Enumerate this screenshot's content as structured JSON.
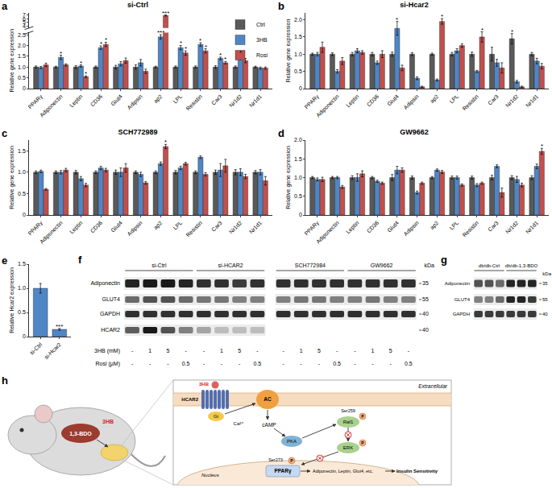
{
  "chart_data": [
    {
      "panel": "a",
      "type": "bar",
      "title": "si-Ctrl",
      "y_label": "Relative gene expression",
      "categories": [
        "PPARγ",
        "Adiponectin",
        "Leptin",
        "CD36",
        "Glut4",
        "Adipsin",
        "ap2",
        "LPL",
        "Resistin",
        "Car3",
        "Nr1d2",
        "Nr1d1"
      ],
      "series": [
        {
          "name": "Ctrl",
          "color": "#595959",
          "values": [
            1,
            1,
            1,
            1,
            1,
            1,
            1,
            1,
            1,
            1,
            1,
            1
          ],
          "errors": [
            0.05,
            0.04,
            0.06,
            0.05,
            0.08,
            0.1,
            0.04,
            0.05,
            0.05,
            0.06,
            0.05,
            0.04
          ]
        },
        {
          "name": "3HB",
          "color": "#4f86c6",
          "values": [
            0.98,
            1.45,
            1.05,
            1.9,
            1.15,
            1.2,
            2.4,
            1.9,
            2.05,
            1.4,
            1.5,
            0.95
          ],
          "errors": [
            0.05,
            0.1,
            0.05,
            0.08,
            0.1,
            0.15,
            0.1,
            0.1,
            0.08,
            0.06,
            0.08,
            0.05
          ],
          "significance": [
            null,
            "*",
            "*",
            "*",
            null,
            null,
            "***",
            "*",
            "*",
            "*",
            "*",
            null
          ]
        },
        {
          "name": "Rosi",
          "color": "#c0504d",
          "values": [
            1.1,
            1.1,
            0.55,
            2.05,
            1.3,
            0.8,
            6.8,
            1.65,
            1.75,
            1.2,
            1.3,
            0.95
          ],
          "errors": [
            0.08,
            0.05,
            0.04,
            0.1,
            0.12,
            0.1,
            0.15,
            0.1,
            0.1,
            0.06,
            0.1,
            0.05
          ],
          "significance": [
            null,
            null,
            "*",
            "*",
            null,
            null,
            "***",
            "*",
            "*",
            "*",
            null,
            null
          ]
        }
      ],
      "ylim": [
        0,
        7.5
      ],
      "y_break": [
        2.6,
        3.5
      ],
      "yticks": [
        0,
        0.5,
        {
          "value": 1,
          "label": "1.0"
        },
        1.5,
        {
          "value": 2,
          "label": "2.0"
        },
        2.5,
        4,
        5,
        6,
        7
      ],
      "grid": false,
      "legend": "upper right"
    },
    {
      "panel": "b",
      "type": "bar",
      "title": "si-Hcar2",
      "y_label": "Relative gene expression",
      "categories": [
        "PPARγ",
        "Adiponectin",
        "Leptin",
        "CD36",
        "Glut4",
        "Adipsin",
        "ap2",
        "LPL",
        "Resistin",
        "Car3",
        "Nr1d2",
        "Nr1d1"
      ],
      "series": [
        {
          "name": "Ctrl",
          "color": "#595959",
          "values": [
            1,
            1,
            1,
            1,
            1,
            1,
            1,
            1,
            1,
            1,
            1.45,
            1
          ],
          "errors": [
            0.03,
            0.04,
            0.05,
            0.05,
            0.06,
            0.04,
            0.03,
            0.05,
            0.06,
            0.2,
            0.15,
            0.05
          ],
          "significance": [
            null,
            null,
            null,
            null,
            null,
            null,
            null,
            null,
            null,
            null,
            "*",
            null
          ]
        },
        {
          "name": "3HB",
          "color": "#4f86c6",
          "values": [
            1.0,
            0.5,
            1.1,
            0.75,
            1.75,
            0.3,
            0.25,
            1.1,
            0.5,
            0.75,
            0.2,
            0.8
          ],
          "errors": [
            0.05,
            0.05,
            0.06,
            0.05,
            0.2,
            0.04,
            0.03,
            0.06,
            0.03,
            0.1,
            0.04,
            0.08
          ],
          "significance": [
            null,
            null,
            null,
            null,
            "*",
            null,
            null,
            null,
            null,
            null,
            null,
            null
          ]
        },
        {
          "name": "Rosi",
          "color": "#c0504d",
          "values": [
            1.2,
            0.8,
            1.05,
            1.0,
            0.6,
            0.05,
            1.95,
            1.25,
            1.5,
            0.6,
            0.05,
            0.65
          ],
          "errors": [
            0.15,
            0.1,
            0.05,
            0.1,
            0.08,
            0.02,
            0.08,
            0.05,
            0.15,
            0.15,
            0.02,
            0.08
          ],
          "significance": [
            null,
            null,
            null,
            null,
            null,
            null,
            "*",
            null,
            "*",
            null,
            null,
            null
          ]
        }
      ],
      "ylim": [
        0,
        2.2
      ],
      "yticks": [
        0,
        0.5,
        {
          "value": 1,
          "label": "1.0"
        },
        1.5,
        {
          "value": 2,
          "label": "2.0"
        }
      ],
      "grid": false
    },
    {
      "panel": "c",
      "type": "bar",
      "title": "SCH772989",
      "y_label": "Relative gene expression",
      "categories": [
        "PPARγ",
        "Adiponectin",
        "Leptin",
        "CD36",
        "Glut4",
        "Adipsin",
        "ap2",
        "LPL",
        "Resistin",
        "Car3",
        "Nr1d2",
        "Nr1d1"
      ],
      "series": [
        {
          "name": "Ctrl",
          "color": "#595959",
          "values": [
            1,
            1,
            1,
            1,
            1,
            1,
            1,
            1,
            1,
            1,
            1,
            1
          ],
          "errors": [
            0.03,
            0.03,
            0.04,
            0.03,
            0.05,
            0.03,
            0.03,
            0.04,
            0.03,
            0.05,
            0.06,
            0.04
          ]
        },
        {
          "name": "3HB",
          "color": "#4f86c6",
          "values": [
            1.02,
            1.0,
            0.85,
            1.1,
            1.0,
            0.95,
            1.2,
            1.1,
            1.35,
            1.05,
            1.0,
            1.0
          ],
          "errors": [
            0.03,
            0.04,
            0.05,
            0.04,
            0.1,
            0.05,
            0.04,
            0.04,
            0.03,
            0.15,
            0.08,
            0.06
          ]
        },
        {
          "name": "Rosi",
          "color": "#c0504d",
          "values": [
            0.6,
            1.05,
            0.7,
            1.05,
            1.1,
            0.75,
            1.6,
            1.2,
            0.95,
            1.15,
            0.9,
            0.8
          ],
          "errors": [
            0.02,
            0.04,
            0.04,
            0.04,
            0.1,
            0.03,
            0.05,
            0.03,
            0.04,
            0.15,
            0.05,
            0.1
          ],
          "significance": [
            null,
            null,
            null,
            null,
            null,
            null,
            "*",
            null,
            null,
            null,
            null,
            null
          ]
        }
      ],
      "ylim": [
        0,
        1.75
      ],
      "yticks": [
        0,
        0.5,
        {
          "value": 1,
          "label": "1.0"
        },
        1.5
      ],
      "grid": false
    },
    {
      "panel": "d",
      "type": "bar",
      "title": "GW9662",
      "y_label": "Relative gene expression",
      "categories": [
        "PPARγ",
        "Adiponectin",
        "Leptin",
        "CD36",
        "Glut4",
        "Adipsin",
        "ap2",
        "LPL",
        "Resistin",
        "Car3",
        "Nr1d2",
        "Nr1d1"
      ],
      "series": [
        {
          "name": "Ctrl",
          "color": "#595959",
          "values": [
            1,
            1,
            1,
            1,
            1,
            1,
            1,
            1,
            1,
            1,
            1,
            1
          ],
          "errors": [
            0.03,
            0.03,
            0.05,
            0.03,
            0.08,
            0.04,
            0.03,
            0.04,
            0.04,
            0.06,
            0.05,
            0.05
          ]
        },
        {
          "name": "3HB",
          "color": "#4f86c6",
          "values": [
            0.95,
            1.0,
            1.0,
            0.9,
            1.2,
            0.6,
            1.2,
            1.0,
            0.8,
            1.3,
            0.95,
            1.3
          ],
          "errors": [
            0.04,
            0.03,
            0.1,
            0.03,
            0.1,
            0.04,
            0.03,
            0.04,
            0.04,
            0.04,
            0.08,
            0.06
          ]
        },
        {
          "name": "Rosi",
          "color": "#c0504d",
          "values": [
            0.95,
            0.75,
            1.1,
            0.85,
            1.2,
            0.85,
            1.15,
            0.8,
            0.85,
            0.6,
            0.8,
            1.7
          ],
          "errors": [
            0.06,
            0.04,
            0.08,
            0.03,
            0.06,
            0.03,
            0.04,
            0.03,
            0.03,
            0.12,
            0.05,
            0.08
          ],
          "significance": [
            null,
            null,
            null,
            null,
            null,
            null,
            null,
            null,
            null,
            null,
            null,
            "*"
          ]
        }
      ],
      "ylim": [
        0,
        2.0
      ],
      "yticks": [
        0,
        0.5,
        {
          "value": 1,
          "label": "1.0"
        },
        1.5,
        {
          "value": 2,
          "label": "2.0"
        }
      ],
      "grid": false
    },
    {
      "panel": "e",
      "type": "bar",
      "y_label": "Relative Hcar2 expression",
      "categories": [
        "si-Ctrl",
        "si-Hcar2"
      ],
      "values": [
        1.0,
        0.15
      ],
      "errors": [
        0.1,
        0.02
      ],
      "significance": [
        null,
        "***"
      ],
      "color": "#4f86c6",
      "ylim": [
        0,
        1.5
      ],
      "yticks": [
        0,
        0.5,
        {
          "value": 1,
          "label": "1.0"
        },
        1.5
      ],
      "grid": false
    }
  ],
  "blots": [
    {
      "panel": "f",
      "unit": "kDa",
      "groups": [
        {
          "label": "si-Ctrl",
          "lanes": 4
        },
        {
          "label": "si-HCAR2",
          "lanes": 4
        },
        {
          "label": "SCH772984",
          "lanes": 4
        },
        {
          "label": "GW9662",
          "lanes": 4
        }
      ],
      "rows": [
        {
          "name": "Adiponectin",
          "kda": 35,
          "intensity": [
            0.9,
            0.95,
            0.95,
            0.9,
            0.85,
            0.85,
            0.8,
            0.85,
            0.85,
            0.85,
            0.85,
            0.85,
            0.85,
            0.85,
            0.85,
            0.85
          ]
        },
        {
          "name": "GLUT4",
          "kda": 55,
          "intensity": [
            0.6,
            0.7,
            0.7,
            0.6,
            0.55,
            0.55,
            0.5,
            0.5,
            0.5,
            0.55,
            0.55,
            0.5,
            0.5,
            0.55,
            0.5,
            0.5
          ]
        },
        {
          "name": "GAPDH",
          "kda": 40,
          "intensity": [
            0.85,
            0.85,
            0.85,
            0.85,
            0.85,
            0.85,
            0.85,
            0.85,
            0.85,
            0.85,
            0.85,
            0.85,
            0.85,
            0.85,
            0.85,
            0.85
          ]
        },
        {
          "name": "HCAR2",
          "kda": 40,
          "intensity": [
            0.65,
            0.95,
            0.7,
            0.5,
            0.3,
            0.2,
            0.2,
            0.2,
            null,
            null,
            null,
            null,
            null,
            null,
            null,
            null
          ]
        }
      ],
      "conditions": [
        {
          "name": "3HB (mM)",
          "values": [
            "-",
            "1",
            "5",
            "-",
            "-",
            "1",
            "5",
            "-",
            "-",
            "1",
            "5",
            "-",
            "-",
            "1",
            "5",
            "-"
          ]
        },
        {
          "name": "Rosi (μM)",
          "values": [
            "-",
            "-",
            "-",
            "0.5",
            "-",
            "-",
            "-",
            "0.5",
            "-",
            "-",
            "-",
            "0.5",
            "-",
            "-",
            "-",
            "0.5"
          ]
        }
      ]
    },
    {
      "panel": "g",
      "unit": "kDa",
      "groups": [
        {
          "label": "db/db-Ctrl",
          "lanes": 3
        },
        {
          "label": "db/db-1,3-BDO",
          "lanes": 3
        }
      ],
      "rows": [
        {
          "name": "Adiponectin",
          "kda": 35,
          "intensity": [
            0.7,
            0.7,
            0.6,
            0.9,
            0.9,
            0.9
          ]
        },
        {
          "name": "GLUT4",
          "kda": 55,
          "intensity": [
            0.5,
            0.5,
            0.6,
            0.9,
            0.9,
            0.8
          ]
        },
        {
          "name": "GAPDH",
          "kda": 40,
          "intensity": [
            0.8,
            0.8,
            0.8,
            0.8,
            0.8,
            0.8
          ]
        }
      ]
    }
  ],
  "diagram": {
    "panel": "h",
    "labels": {
      "bdo": "1,3-BDO",
      "ligand_mouse": "3HB",
      "ligand": "3HB",
      "receptor": "HCAR2",
      "gprotein": "Gi",
      "ac": "AC",
      "calcium": "Ca²⁺",
      "camp": "cAMP",
      "pka": "PKA",
      "ser259": "Ser259",
      "phospho": "P",
      "raf": "Raf1",
      "erk": "ERK",
      "ser273": "Ser273",
      "ppar": "PPARγ",
      "genes": "Adiponectin, Leptin, Glut4, etc.",
      "outcome": "Insulin Sensitivity",
      "extracellular": "Extracellular",
      "nucleus": "Nucleus"
    }
  }
}
